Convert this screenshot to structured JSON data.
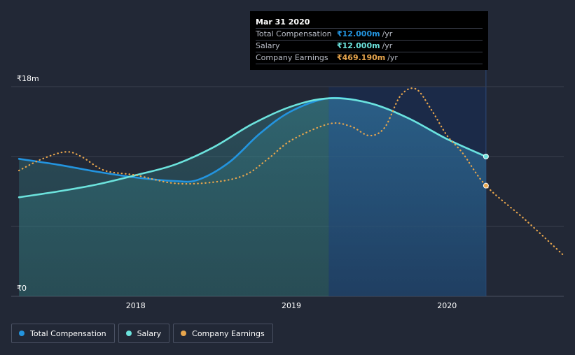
{
  "colors": {
    "background": "#222836",
    "total_compensation": "#2394df",
    "salary": "#6ce3dd",
    "company_earnings": "#e8a64d",
    "grid": "#3a404e",
    "highlight": "#1b2a4a"
  },
  "tooltip": {
    "title": "Mar 31 2020",
    "rows": [
      {
        "label": "Total Compensation",
        "value": "₹12.000m",
        "unit": "/yr"
      },
      {
        "label": "Salary",
        "value": "₹12.000m",
        "unit": "/yr"
      },
      {
        "label": "Company Earnings",
        "value": "₹469.190m",
        "unit": "/yr"
      }
    ]
  },
  "legend": {
    "items": [
      {
        "label": "Total Compensation",
        "icon": "dot"
      },
      {
        "label": "Salary",
        "icon": "dot"
      },
      {
        "label": "Company Earnings",
        "icon": "dot"
      }
    ]
  },
  "chart_data": {
    "type": "line",
    "title": "",
    "xlabel": "",
    "ylabel": "",
    "ylim": [
      0,
      18
    ],
    "xlim": [
      2017.2,
      2020.75
    ],
    "y_ticks": [
      {
        "value": 18,
        "label": "₹18m"
      },
      {
        "value": 0,
        "label": "₹0"
      }
    ],
    "x_ticks": [
      {
        "value": 2018,
        "label": "2018"
      },
      {
        "value": 2019,
        "label": "2019"
      },
      {
        "value": 2020,
        "label": "2020"
      }
    ],
    "highlight_start": 2019.24,
    "highlight_end": 2020.25,
    "series": [
      {
        "name": "Total Compensation",
        "key": "total_compensation",
        "style": "solid-area",
        "points": [
          [
            2017.25,
            11.8
          ],
          [
            2017.5,
            11.3
          ],
          [
            2017.75,
            10.7
          ],
          [
            2018.0,
            10.2
          ],
          [
            2018.25,
            9.9
          ],
          [
            2018.4,
            10.0
          ],
          [
            2018.6,
            11.5
          ],
          [
            2018.8,
            14.0
          ],
          [
            2019.0,
            15.9
          ],
          [
            2019.24,
            17.0
          ],
          [
            2019.5,
            16.6
          ],
          [
            2019.75,
            15.3
          ],
          [
            2020.0,
            13.5
          ],
          [
            2020.25,
            12.0
          ]
        ]
      },
      {
        "name": "Salary",
        "key": "salary",
        "style": "solid-area",
        "points": [
          [
            2017.25,
            8.5
          ],
          [
            2017.5,
            9.0
          ],
          [
            2017.75,
            9.6
          ],
          [
            2018.0,
            10.4
          ],
          [
            2018.25,
            11.3
          ],
          [
            2018.5,
            12.8
          ],
          [
            2018.75,
            14.8
          ],
          [
            2019.0,
            16.3
          ],
          [
            2019.24,
            17.0
          ],
          [
            2019.5,
            16.6
          ],
          [
            2019.75,
            15.3
          ],
          [
            2020.0,
            13.5
          ],
          [
            2020.25,
            12.0
          ]
        ]
      },
      {
        "name": "Company Earnings",
        "key": "company_earnings",
        "style": "dotted",
        "points": [
          [
            2017.25,
            10.8
          ],
          [
            2017.4,
            11.8
          ],
          [
            2017.55,
            12.4
          ],
          [
            2017.65,
            12.0
          ],
          [
            2017.8,
            10.8
          ],
          [
            2018.0,
            10.4
          ],
          [
            2018.25,
            9.7
          ],
          [
            2018.5,
            9.8
          ],
          [
            2018.7,
            10.4
          ],
          [
            2018.85,
            11.8
          ],
          [
            2019.0,
            13.4
          ],
          [
            2019.24,
            14.8
          ],
          [
            2019.38,
            14.6
          ],
          [
            2019.5,
            13.8
          ],
          [
            2019.6,
            14.5
          ],
          [
            2019.7,
            17.2
          ],
          [
            2019.8,
            17.8
          ],
          [
            2019.9,
            16.0
          ],
          [
            2020.0,
            13.8
          ],
          [
            2020.1,
            12.3
          ],
          [
            2020.25,
            9.5
          ],
          [
            2020.5,
            6.6
          ],
          [
            2020.75,
            3.5
          ]
        ]
      }
    ],
    "markers": [
      {
        "series": "Salary",
        "x": 2020.25,
        "y": 12.0
      },
      {
        "series": "Company Earnings",
        "x": 2020.25,
        "y": 9.5
      }
    ]
  }
}
